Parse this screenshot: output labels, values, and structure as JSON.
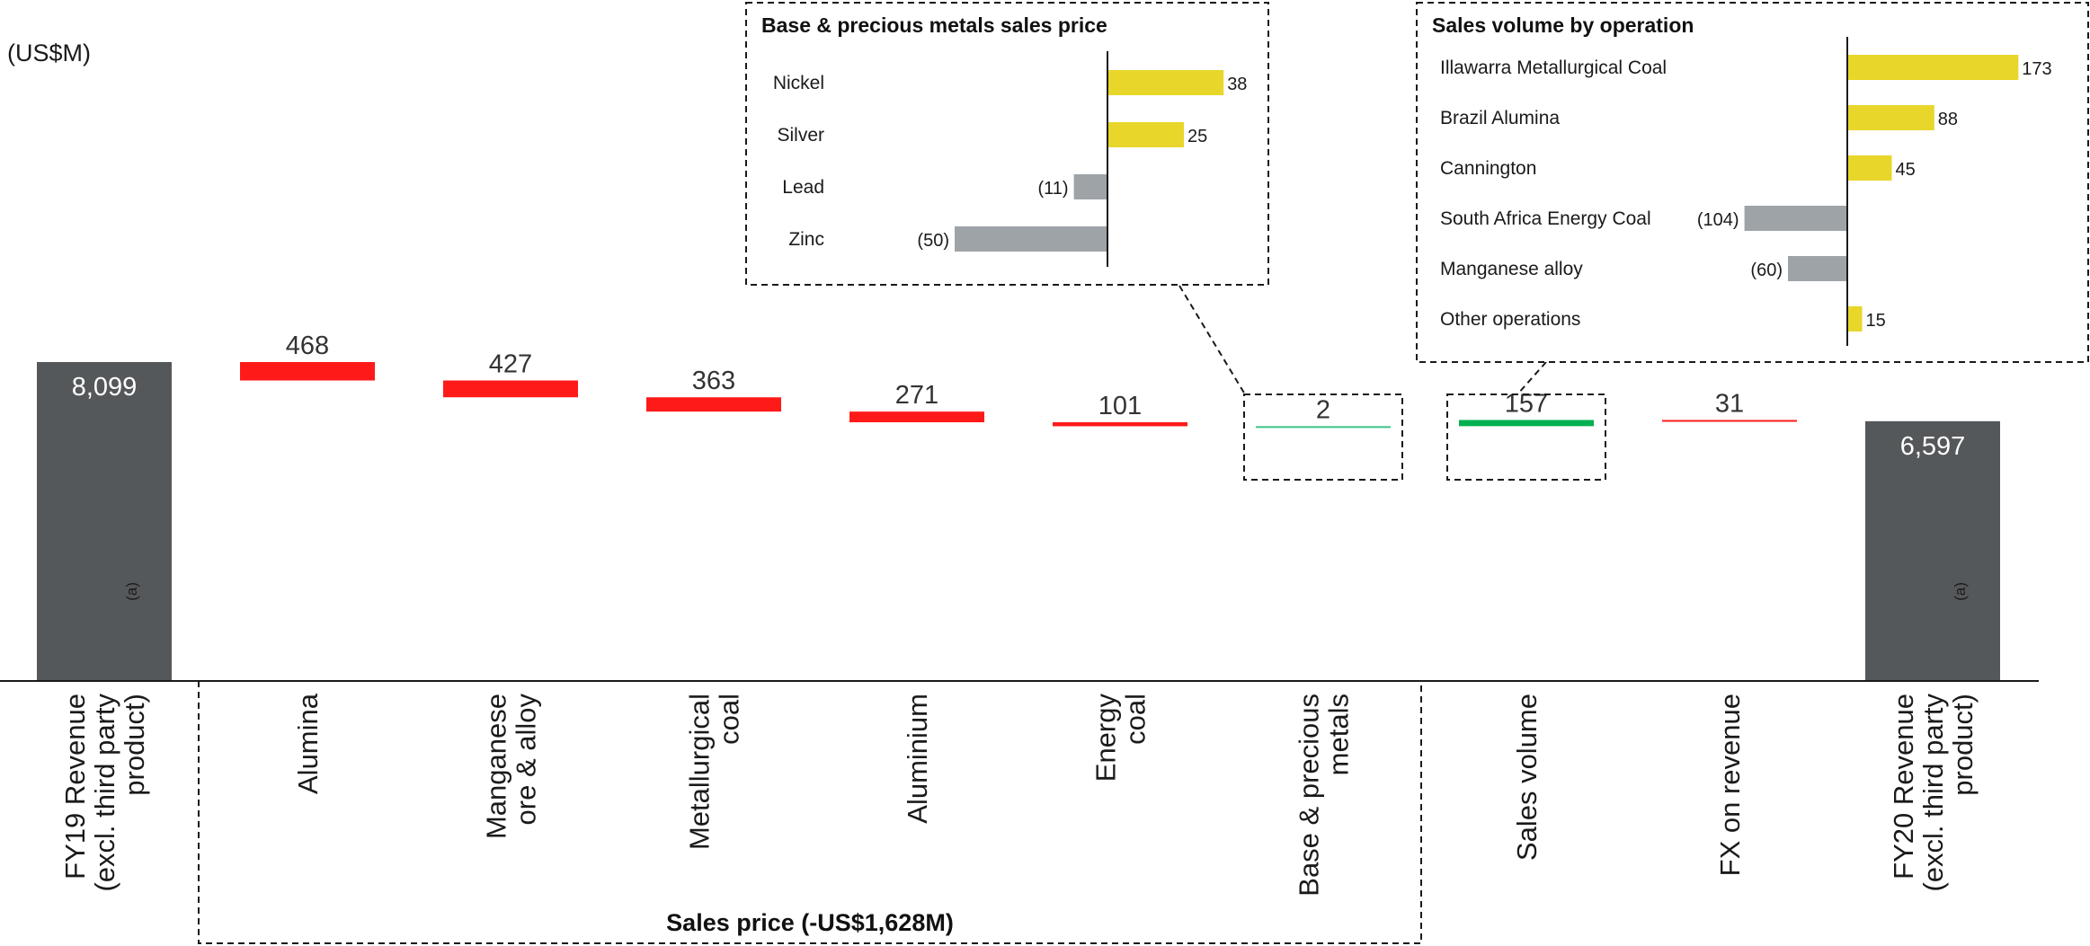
{
  "unit_label": "(US$M)",
  "chart_data": [
    {
      "type": "waterfall",
      "categories": [
        "FY19 Revenue (excl. third party product)",
        "Alumina",
        "Manganese ore & alloy",
        "Metallurgical coal",
        "Aluminium",
        "Energy coal",
        "Base & precious metals",
        "Sales volume",
        "FX on revenue",
        "FY20 Revenue (excl. third party product)"
      ],
      "category_lines": [
        [
          "FY19 Revenue",
          "(excl. third party",
          "product)"
        ],
        [
          "Alumina"
        ],
        [
          "Manganese",
          "ore & alloy"
        ],
        [
          "Metallurgical",
          "coal"
        ],
        [
          "Aluminium"
        ],
        [
          "Energy",
          "coal"
        ],
        [
          "Base & precious",
          "metals"
        ],
        [
          "Sales volume"
        ],
        [
          "FX on revenue"
        ],
        [
          "FY20 Revenue",
          "(excl. third party",
          "product)"
        ]
      ],
      "footnote_marker": "(a)",
      "labels": [
        "8,099",
        "468",
        "427",
        "363",
        "271",
        "101",
        "2",
        "157",
        "31",
        "6,597"
      ],
      "values": [
        8099,
        -468,
        -427,
        -363,
        -271,
        -101,
        2,
        157,
        -31,
        6597
      ],
      "kinds": [
        "total",
        "decrease",
        "decrease",
        "decrease",
        "decrease",
        "decrease",
        "increase",
        "increase",
        "decrease",
        "total"
      ],
      "colors": {
        "total": "#55585a",
        "decrease": "#ff1a1a",
        "increase": "#00b050",
        "increase_thin": "#3cc387"
      },
      "group_label": "Sales price (-US$1,628M)"
    },
    {
      "type": "bar",
      "orientation": "horizontal",
      "title": "Base & precious metals sales price",
      "categories": [
        "Nickel",
        "Silver",
        "Lead",
        "Zinc"
      ],
      "values": [
        38,
        25,
        -11,
        -50
      ],
      "labels": [
        "38",
        "25",
        "(11)",
        "(50)"
      ],
      "colors": {
        "positive": "#e8d62a",
        "negative": "#9ea3a8"
      }
    },
    {
      "type": "bar",
      "orientation": "horizontal",
      "title": "Sales volume by operation",
      "categories": [
        "Illawarra Metallurgical Coal",
        "Brazil Alumina",
        "Cannington",
        "South Africa Energy Coal",
        "Manganese alloy",
        "Other operations"
      ],
      "values": [
        173,
        88,
        45,
        -104,
        -60,
        15
      ],
      "labels": [
        "173",
        "88",
        "45",
        "(104)",
        "(60)",
        "15"
      ],
      "colors": {
        "positive": "#e8d62a",
        "negative": "#9ea3a8"
      }
    }
  ]
}
